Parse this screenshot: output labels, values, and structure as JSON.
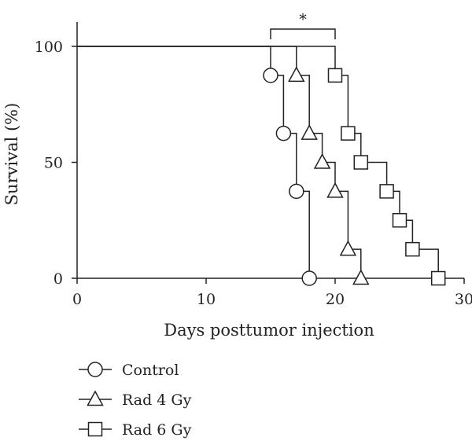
{
  "chart_data": {
    "type": "line",
    "subtype": "kaplan-meier step survival curves",
    "xlabel": "Days posttumor injection",
    "ylabel": "Survival (%)",
    "xlim": [
      0,
      30
    ],
    "ylim": [
      0,
      100
    ],
    "xticks": [
      "0",
      "10",
      "20",
      "30"
    ],
    "yticks": [
      "0",
      "50",
      "100"
    ],
    "grid": false,
    "legend_position": "bottom-left",
    "annotation": {
      "text": "*",
      "from_x": 15,
      "to_x": 20,
      "y": 107
    },
    "series": [
      {
        "name": "Control",
        "marker": "circle",
        "x": [
          15,
          16,
          17,
          18
        ],
        "y": [
          87.5,
          62.5,
          37.5,
          0
        ]
      },
      {
        "name": "Rad 4 Gy",
        "marker": "triangle",
        "x": [
          17,
          18,
          19,
          20,
          21,
          22
        ],
        "y": [
          87.5,
          62.5,
          50,
          37.5,
          12.5,
          0
        ]
      },
      {
        "name": "Rad 6 Gy",
        "marker": "square",
        "x": [
          20,
          21,
          22,
          24,
          25,
          26,
          28
        ],
        "y": [
          87.5,
          62.5,
          50,
          37.5,
          25,
          12.5,
          0
        ]
      }
    ]
  }
}
